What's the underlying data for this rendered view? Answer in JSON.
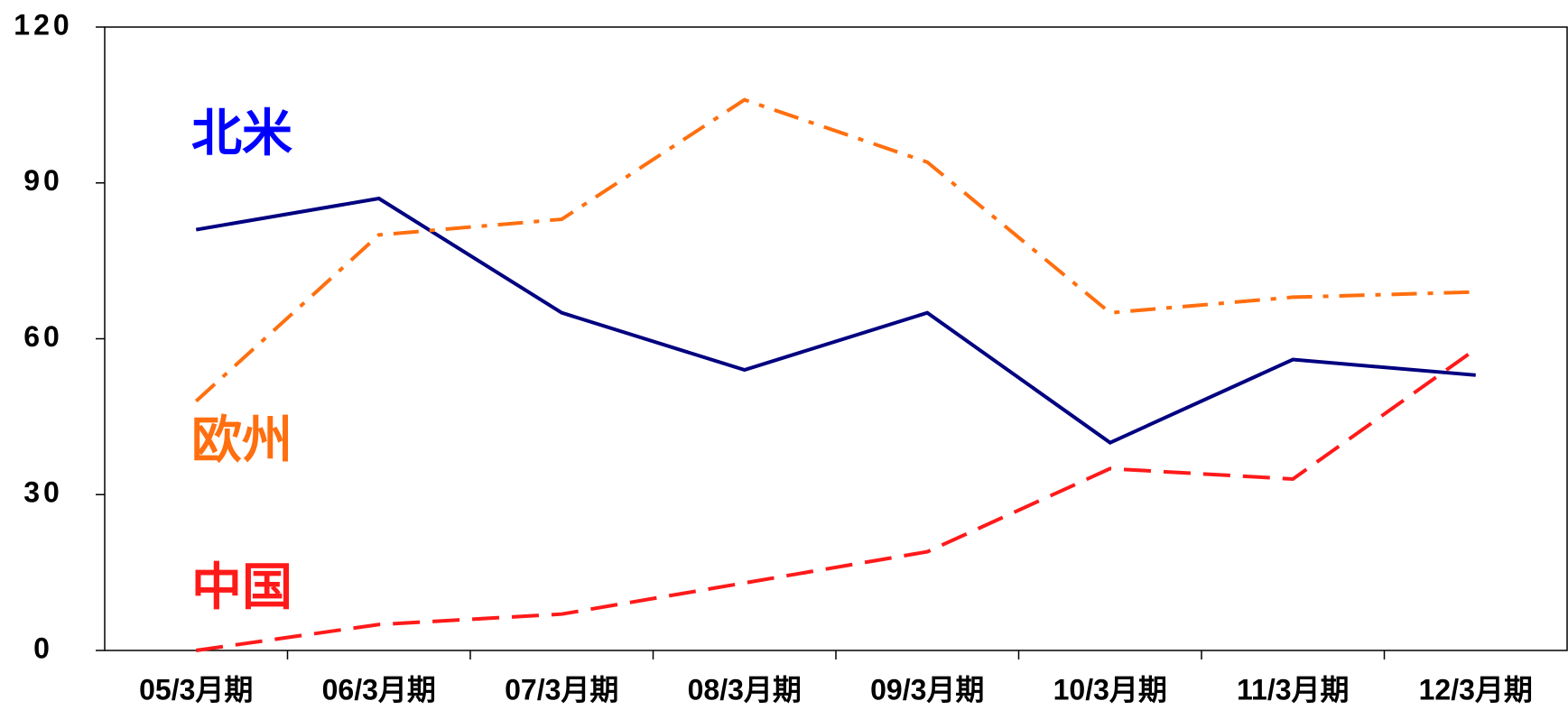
{
  "chart_data": {
    "type": "line",
    "categories": [
      "05/3月期",
      "06/3月期",
      "07/3月期",
      "08/3月期",
      "09/3月期",
      "10/3月期",
      "11/3月期",
      "12/3月期"
    ],
    "series": [
      {
        "name": "北米",
        "color": "#000080",
        "label_color": "#0000ff",
        "dash": "solid",
        "values": [
          81,
          87,
          65,
          54,
          65,
          40,
          56,
          53
        ]
      },
      {
        "name": "欧州",
        "color": "#ff6f0f",
        "label_color": "#ff6f0f",
        "dash": "dashdot",
        "values": [
          48,
          80,
          83,
          106,
          94,
          65,
          68,
          69
        ]
      },
      {
        "name": "中国",
        "color": "#ff1a1a",
        "label_color": "#ff1a1a",
        "dash": "dash",
        "values": [
          0,
          5,
          7,
          13,
          19,
          35,
          33,
          58
        ]
      }
    ],
    "ylim": [
      0,
      120
    ],
    "yticks": [
      0,
      30,
      60,
      90,
      120
    ],
    "grid": false
  }
}
